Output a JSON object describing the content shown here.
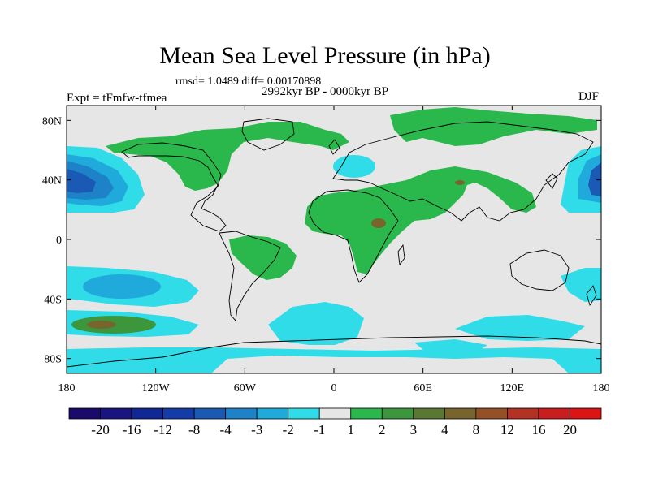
{
  "title": "Mean Sea Level Pressure (in hPa)",
  "stats": "rmsd= 1.0489 diff= 0.00170898",
  "period": "2992kyr BP - 0000kyr BP",
  "experiment": "Expt = tFmfw-tfmea",
  "season": "DJF",
  "map": {
    "lon_ticks": [
      "180",
      "120W",
      "60W",
      "0",
      "60E",
      "120E",
      "180"
    ],
    "lat_ticks": [
      "80N",
      "40N",
      "0",
      "40S",
      "80S"
    ]
  },
  "colorbar": {
    "labels": [
      "-20",
      "-16",
      "-12",
      "-8",
      "-4",
      "-3",
      "-2",
      "-1",
      "1",
      "2",
      "3",
      "4",
      "8",
      "12",
      "16",
      "20"
    ],
    "colors": [
      "#1a0a6b",
      "#1a1480",
      "#0f2896",
      "#143ca8",
      "#1a5ab4",
      "#1e82c8",
      "#20aadc",
      "#30dce8",
      "#e6e6e6",
      "#2ab84c",
      "#3c963c",
      "#5a7832",
      "#78642d",
      "#965028",
      "#b43223",
      "#c81e1e",
      "#dc1414"
    ]
  },
  "palette": {
    "neutral": "#e6e6e6",
    "light_cyan": "#30dce8",
    "mid_blue": "#20aadc",
    "blue": "#1e82c8",
    "dark_blue": "#1a5ab4",
    "green": "#2ab84c",
    "dark_green": "#3c963c",
    "brown": "#78642d"
  }
}
